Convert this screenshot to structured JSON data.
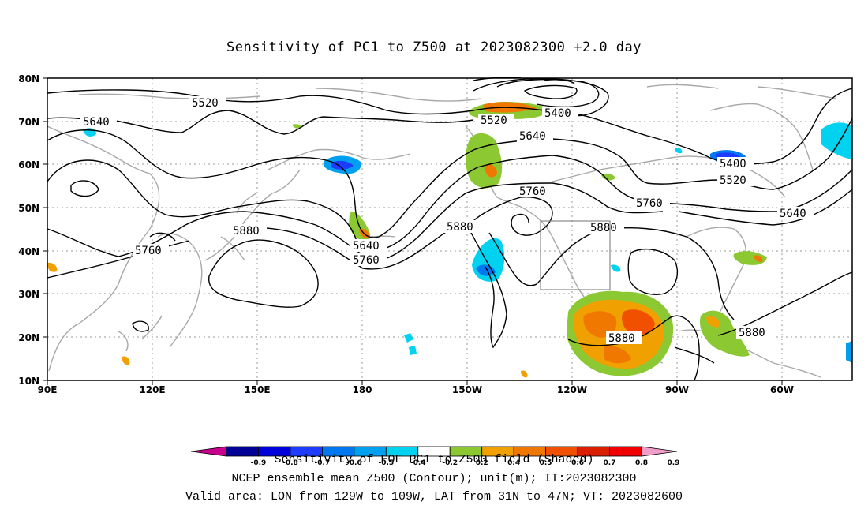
{
  "title": "Sensitivity of PC1 to Z500 at 2023082300 +2.0 day",
  "axes": {
    "x_ticks": [
      "90E",
      "120E",
      "150E",
      "180",
      "150W",
      "120W",
      "90W",
      "60W"
    ],
    "y_ticks": [
      "80N",
      "70N",
      "60N",
      "50N",
      "40N",
      "30N",
      "20N",
      "10N"
    ]
  },
  "contour_labels": [
    "5520",
    "5640",
    "5400",
    "5520",
    "5640",
    "5400",
    "5520",
    "5760",
    "5640",
    "5880",
    "5760",
    "5640",
    "5760",
    "5880",
    "5760",
    "5880",
    "5880",
    "5880"
  ],
  "valid_box": {
    "lon_min": "129W",
    "lon_max": "109W",
    "lat_min": "31N",
    "lat_max": "47N"
  },
  "colorbar": {
    "ticks": [
      "-0.9",
      "-0.8",
      "-0.7",
      "-0.6",
      "-0.5",
      "-0.4",
      "-0.2",
      "0.2",
      "0.4",
      "0.5",
      "0.6",
      "0.7",
      "0.8",
      "0.9"
    ],
    "colors": [
      "#c8008c",
      "#000096",
      "#0000dc",
      "#1e3cff",
      "#0078f0",
      "#00a0f0",
      "#00d2f0",
      "#ffffff",
      "#8cc832",
      "#f0a000",
      "#f07800",
      "#f05000",
      "#dc1e00",
      "#f00000",
      "#f0a0c8"
    ],
    "label": "Sensitivity of EOF PC1 to Z500 field (Shaded)"
  },
  "footer": {
    "line1": "NCEP ensemble mean Z500 (Contour); unit(m); IT:2023082300",
    "line2": "Valid area: LON from 129W to 109W, LAT from 31N to 47N; VT: 2023082600"
  }
}
